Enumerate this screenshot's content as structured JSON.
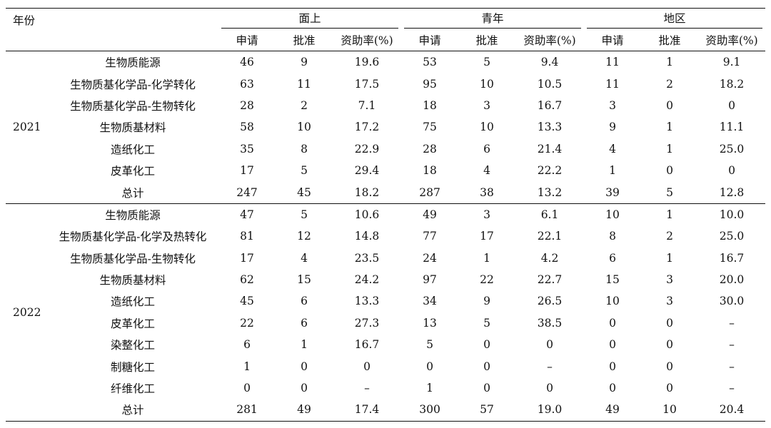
{
  "header": {
    "year_label": "年份",
    "groups": [
      "面上",
      "青年",
      "地区"
    ],
    "sub_columns": [
      "申请",
      "批准",
      "资助率(%)"
    ]
  },
  "blocks": [
    {
      "year": "2021",
      "rows": [
        {
          "category": "生物质能源",
          "values": [
            "46",
            "9",
            "19.6",
            "53",
            "5",
            "9.4",
            "11",
            "1",
            "9.1"
          ]
        },
        {
          "category": "生物质基化学品-化学转化",
          "values": [
            "63",
            "11",
            "17.5",
            "95",
            "10",
            "10.5",
            "11",
            "2",
            "18.2"
          ]
        },
        {
          "category": "生物质基化学品-生物转化",
          "values": [
            "28",
            "2",
            "7.1",
            "18",
            "3",
            "16.7",
            "3",
            "0",
            "0"
          ]
        },
        {
          "category": "生物质基材料",
          "values": [
            "58",
            "10",
            "17.2",
            "75",
            "10",
            "13.3",
            "9",
            "1",
            "11.1"
          ]
        },
        {
          "category": "造纸化工",
          "values": [
            "35",
            "8",
            "22.9",
            "28",
            "6",
            "21.4",
            "4",
            "1",
            "25.0"
          ]
        },
        {
          "category": "皮革化工",
          "values": [
            "17",
            "5",
            "29.4",
            "18",
            "4",
            "22.2",
            "1",
            "0",
            "0"
          ]
        },
        {
          "category": "总计",
          "values": [
            "247",
            "45",
            "18.2",
            "287",
            "38",
            "13.2",
            "39",
            "5",
            "12.8"
          ]
        }
      ]
    },
    {
      "year": "2022",
      "rows": [
        {
          "category": "生物质能源",
          "values": [
            "47",
            "5",
            "10.6",
            "49",
            "3",
            "6.1",
            "10",
            "1",
            "10.0"
          ]
        },
        {
          "category": "生物质基化学品-化学及热转化",
          "values": [
            "81",
            "12",
            "14.8",
            "77",
            "17",
            "22.1",
            "8",
            "2",
            "25.0"
          ]
        },
        {
          "category": "生物质基化学品-生物转化",
          "values": [
            "17",
            "4",
            "23.5",
            "24",
            "1",
            "4.2",
            "6",
            "1",
            "16.7"
          ]
        },
        {
          "category": "生物质基材料",
          "values": [
            "62",
            "15",
            "24.2",
            "97",
            "22",
            "22.7",
            "15",
            "3",
            "20.0"
          ]
        },
        {
          "category": "造纸化工",
          "values": [
            "45",
            "6",
            "13.3",
            "34",
            "9",
            "26.5",
            "10",
            "3",
            "30.0"
          ]
        },
        {
          "category": "皮革化工",
          "values": [
            "22",
            "6",
            "27.3",
            "13",
            "5",
            "38.5",
            "0",
            "0",
            "–"
          ]
        },
        {
          "category": "染整化工",
          "values": [
            "6",
            "1",
            "16.7",
            "5",
            "0",
            "0",
            "0",
            "0",
            "–"
          ]
        },
        {
          "category": "制糖化工",
          "values": [
            "1",
            "0",
            "0",
            "0",
            "0",
            "–",
            "0",
            "0",
            "–"
          ]
        },
        {
          "category": "纤维化工",
          "values": [
            "0",
            "0",
            "–",
            "1",
            "0",
            "0",
            "0",
            "0",
            "–"
          ]
        },
        {
          "category": "总计",
          "values": [
            "281",
            "49",
            "17.4",
            "300",
            "57",
            "19.0",
            "49",
            "10",
            "20.4"
          ]
        }
      ]
    }
  ]
}
